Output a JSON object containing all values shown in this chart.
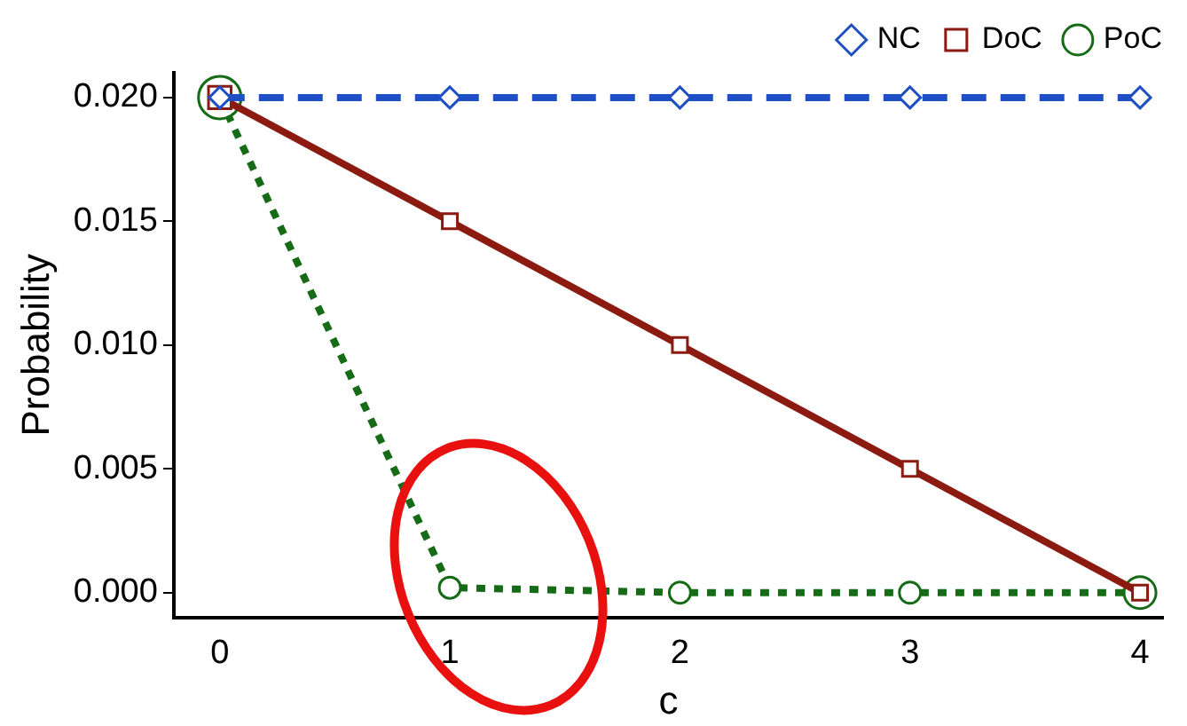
{
  "chart_data": {
    "type": "line",
    "xlabel": "c",
    "ylabel": "Probability",
    "x": [
      0,
      1,
      2,
      3,
      4
    ],
    "series": [
      {
        "name": "NC",
        "color": "#1f4fc4",
        "values": [
          0.02,
          0.02,
          0.02,
          0.02,
          0.02
        ],
        "marker": "diamond",
        "line_style": "dashed"
      },
      {
        "name": "DoC",
        "color": "#8b1a10",
        "values": [
          0.02,
          0.015,
          0.01,
          0.005,
          0.0
        ],
        "marker": "square",
        "line_style": "solid"
      },
      {
        "name": "PoC",
        "color": "#166b16",
        "values": [
          0.02,
          0.0002,
          0.0,
          0.0,
          0.0
        ],
        "marker": "circle",
        "line_style": "dotted"
      }
    ],
    "xlim": [
      -0.2,
      4.1
    ],
    "ylim": [
      -0.001,
      0.021
    ],
    "xticks": [
      0,
      1,
      2,
      3,
      4
    ],
    "yticks": [
      {
        "value": 0,
        "label": "0.000"
      },
      {
        "value": 0.005,
        "label": "0.005"
      },
      {
        "value": 0.01,
        "label": "0.010"
      },
      {
        "value": 0.015,
        "label": "0.015"
      },
      {
        "value": 0.02,
        "label": "0.020"
      }
    ],
    "grid": false,
    "legend": "top right"
  }
}
